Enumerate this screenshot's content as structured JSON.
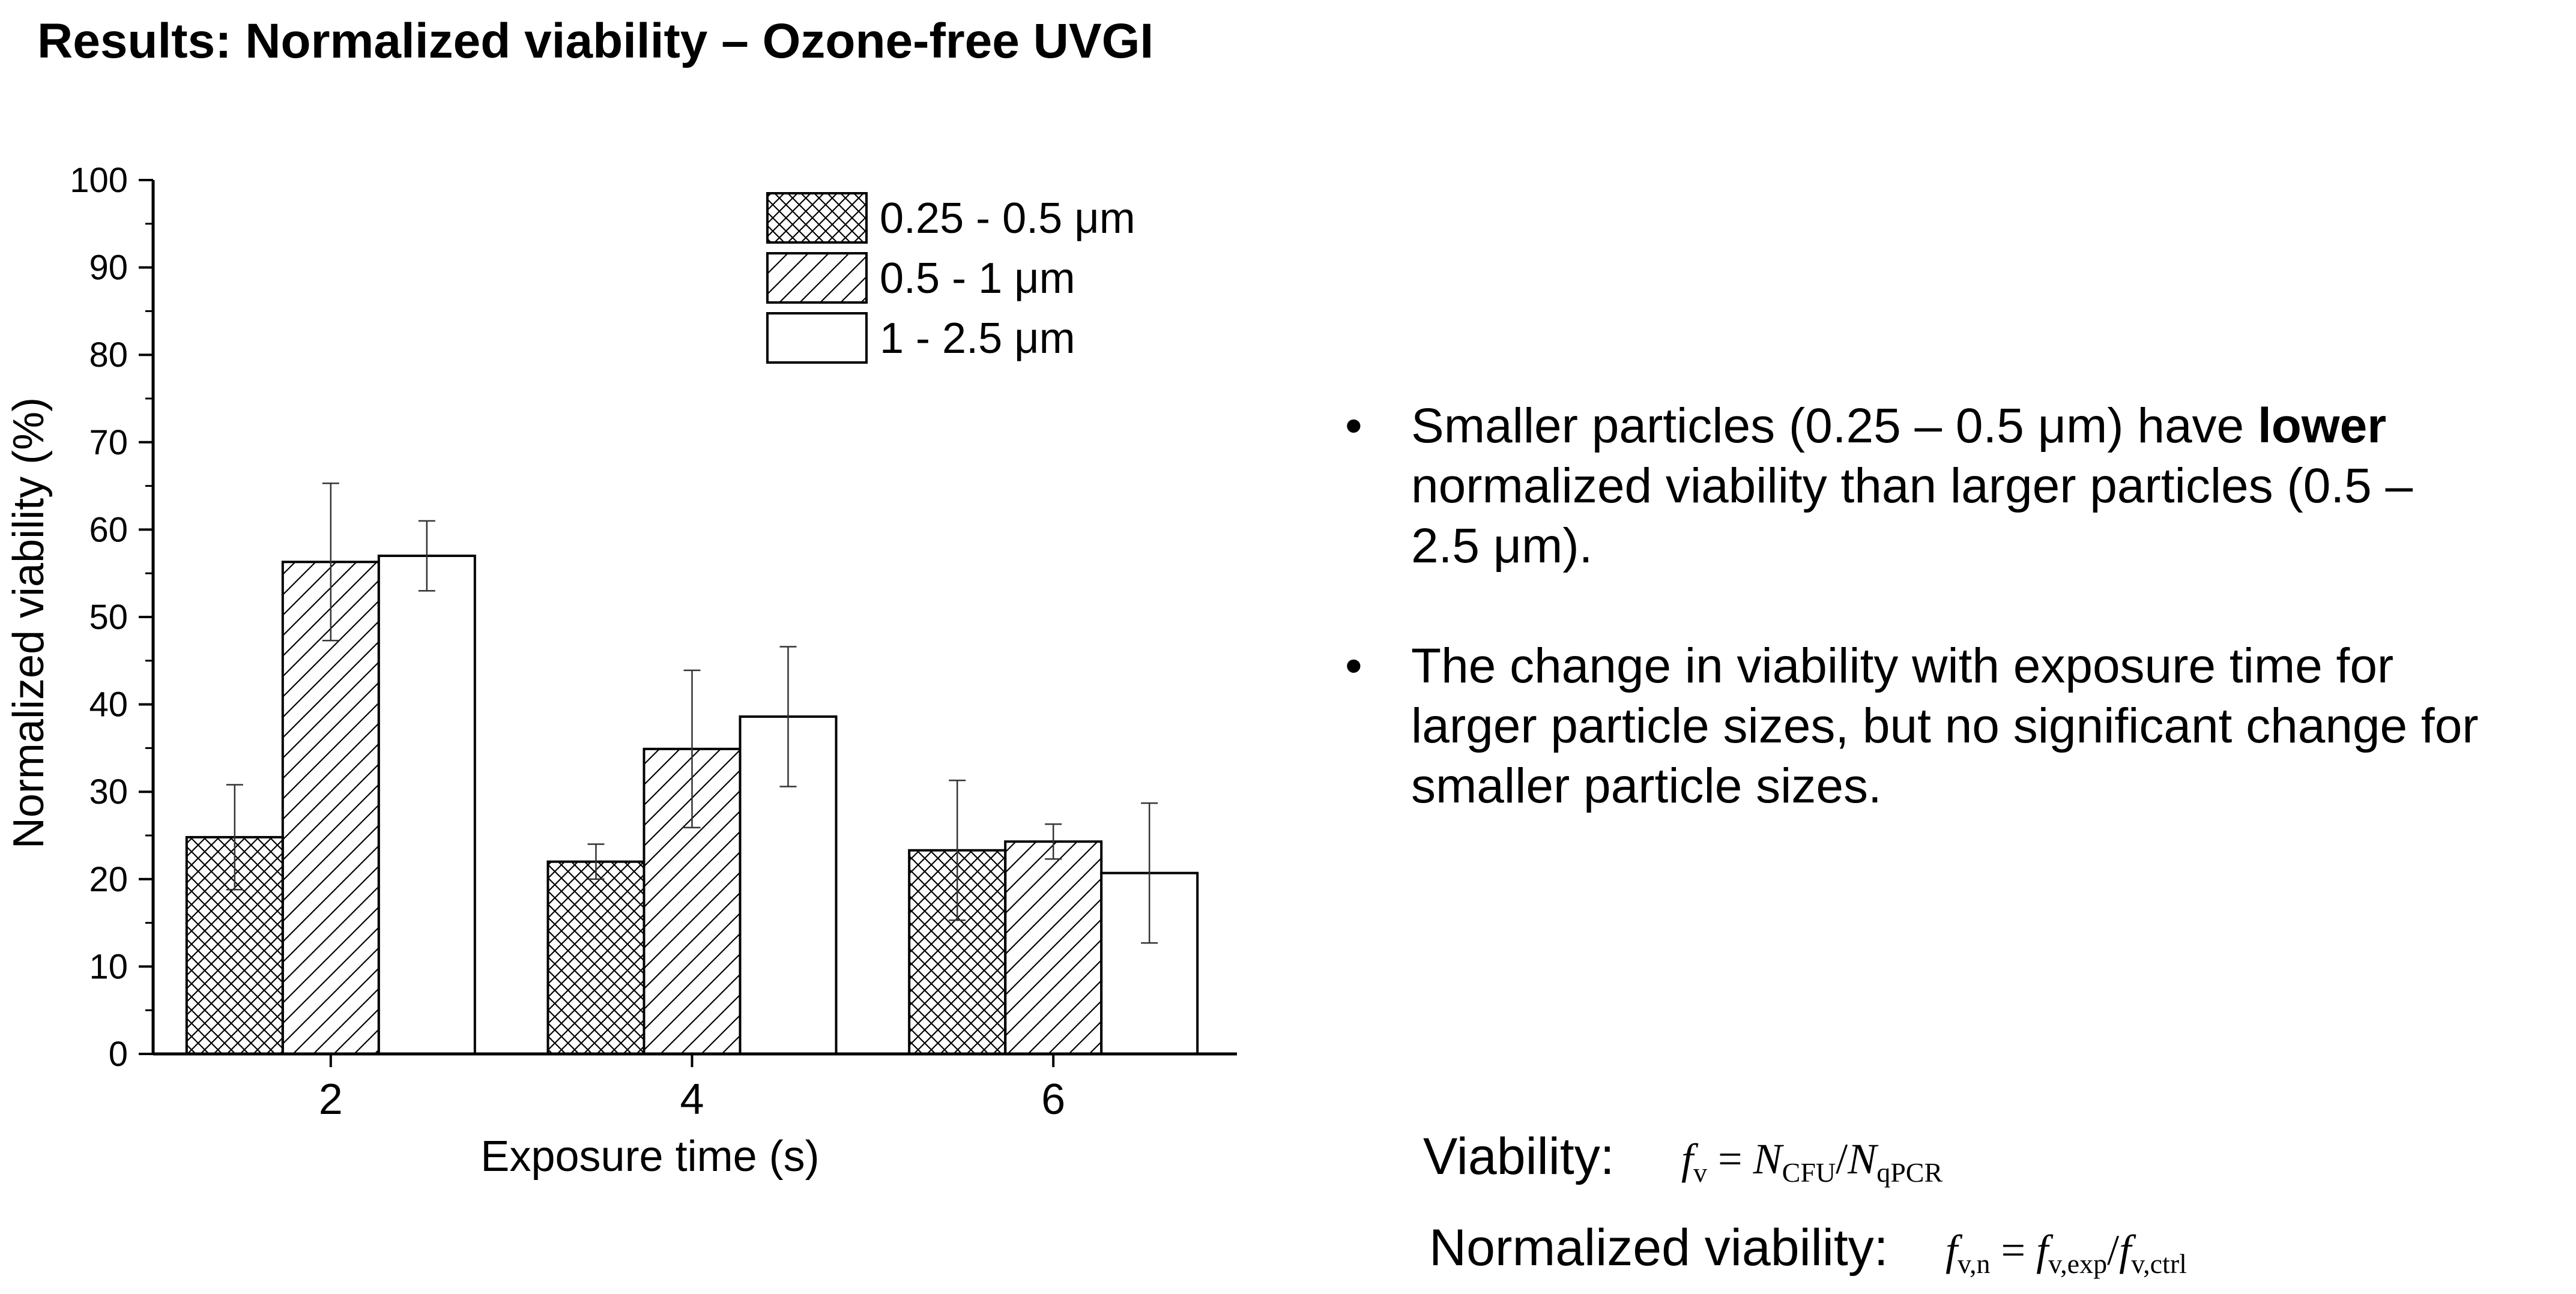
{
  "title": "Results: Normalized viability – Ozone-free UVGI",
  "chart_data": {
    "type": "bar",
    "title": "",
    "xlabel": "Exposure time (s)",
    "ylabel": "Normalized viability (%)",
    "ylim": [
      0,
      100
    ],
    "yticks": [
      0,
      10,
      20,
      30,
      40,
      50,
      60,
      70,
      80,
      90,
      100
    ],
    "categories": [
      "2",
      "4",
      "6"
    ],
    "legend_position": "top-right",
    "series": [
      {
        "name": "0.25 - 0.5 μm",
        "pattern": "crosshatch",
        "values": [
          24.8,
          22.0,
          23.3
        ],
        "errors": [
          6.0,
          2.0,
          8.0
        ]
      },
      {
        "name": "0.5 - 1 μm",
        "pattern": "diagonal",
        "values": [
          56.3,
          34.9,
          24.3
        ],
        "errors": [
          9.0,
          9.0,
          2.0
        ]
      },
      {
        "name": "1 - 2.5 μm",
        "pattern": "none",
        "values": [
          57.0,
          38.6,
          20.7
        ],
        "errors": [
          4.0,
          8.0,
          8.0
        ]
      }
    ]
  },
  "bullets": [
    {
      "pre": "Smaller particles (0.25 – 0.5 μm) have ",
      "bold": "lower",
      "post": " normalized viability than larger particles (0.5 – 2.5 μm)."
    },
    {
      "pre": "The change in viability with exposure time for larger particle sizes, but no significant change for smaller particle sizes.",
      "bold": "",
      "post": ""
    }
  ],
  "bullet_symbol": "•",
  "formulas": {
    "viability_label": "Viability:",
    "normalized_label": "Normalized viability:"
  }
}
